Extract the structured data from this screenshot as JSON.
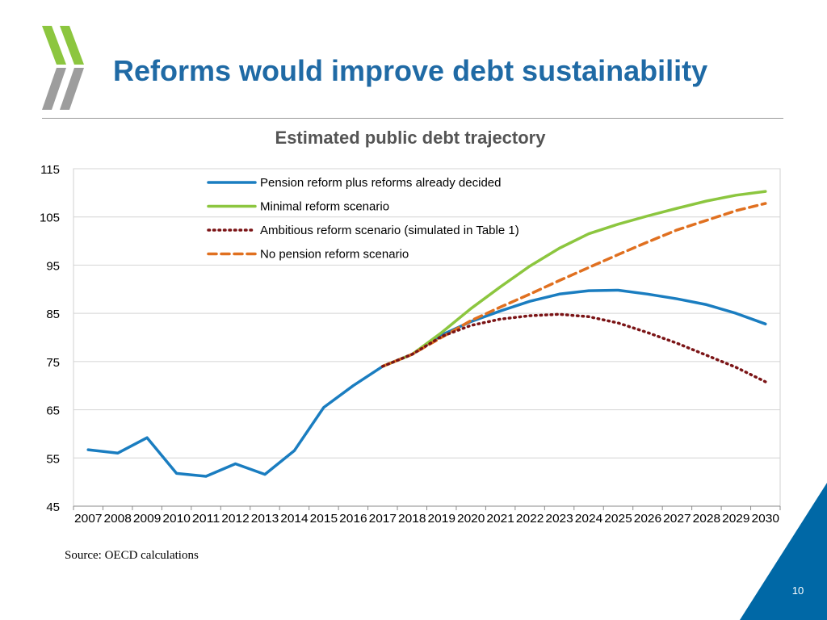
{
  "slide": {
    "title": "Reforms would improve debt sustainability",
    "source": "Source: OECD calculations",
    "page_number": "10"
  },
  "colors": {
    "title": "#1f6aa5",
    "logo_green": "#8cc63f",
    "logo_gray": "#9d9d9d",
    "corner_blue": "#0068a6",
    "rule": "#9a9a9a"
  },
  "chart_data": {
    "type": "line",
    "title": "Estimated public debt trajectory",
    "xlabel": "",
    "ylabel": "",
    "ylim": [
      45,
      115
    ],
    "yticks": [
      45,
      55,
      65,
      75,
      85,
      95,
      105,
      115
    ],
    "grid": true,
    "legend_position": "top-left",
    "categories": [
      "2007",
      "2008",
      "2009",
      "2010",
      "2011",
      "2012",
      "2013",
      "2014",
      "2015",
      "2016",
      "2017",
      "2018",
      "2019",
      "2020",
      "2021",
      "2022",
      "2023",
      "2024",
      "2025",
      "2026",
      "2027",
      "2028",
      "2029",
      "2030"
    ],
    "series": [
      {
        "name": "Pension reform plus reforms already decided",
        "color": "#1a7dc0",
        "style": "solid",
        "values": [
          56.7,
          56.0,
          59.2,
          51.8,
          51.2,
          53.8,
          51.6,
          56.5,
          65.5,
          70.0,
          74.0,
          76.5,
          80.5,
          83.3,
          85.5,
          87.5,
          89.0,
          89.7,
          89.8,
          89.0,
          88.0,
          86.8,
          85.0,
          82.8
        ]
      },
      {
        "name": "Minimal reform scenario",
        "color": "#8cc63f",
        "style": "solid",
        "values": [
          null,
          null,
          null,
          null,
          null,
          null,
          null,
          null,
          null,
          null,
          74.0,
          76.5,
          81.0,
          86.0,
          90.5,
          94.8,
          98.5,
          101.5,
          103.5,
          105.2,
          106.8,
          108.3,
          109.5,
          110.3
        ]
      },
      {
        "name": "Ambitious reform scenario (simulated in Table 1)",
        "color": "#7b1416",
        "style": "dotted",
        "values": [
          null,
          null,
          null,
          null,
          null,
          null,
          null,
          null,
          null,
          null,
          74.0,
          76.5,
          80.2,
          82.5,
          83.8,
          84.5,
          84.8,
          84.3,
          83.0,
          81.0,
          78.8,
          76.3,
          73.8,
          70.8
        ]
      },
      {
        "name": "No pension reform scenario",
        "color": "#e07020",
        "style": "dashed",
        "values": [
          null,
          null,
          null,
          null,
          null,
          null,
          null,
          null,
          null,
          null,
          74.0,
          76.5,
          80.0,
          83.5,
          86.3,
          89.0,
          91.8,
          94.5,
          97.2,
          99.8,
          102.3,
          104.3,
          106.3,
          107.8
        ]
      }
    ]
  }
}
